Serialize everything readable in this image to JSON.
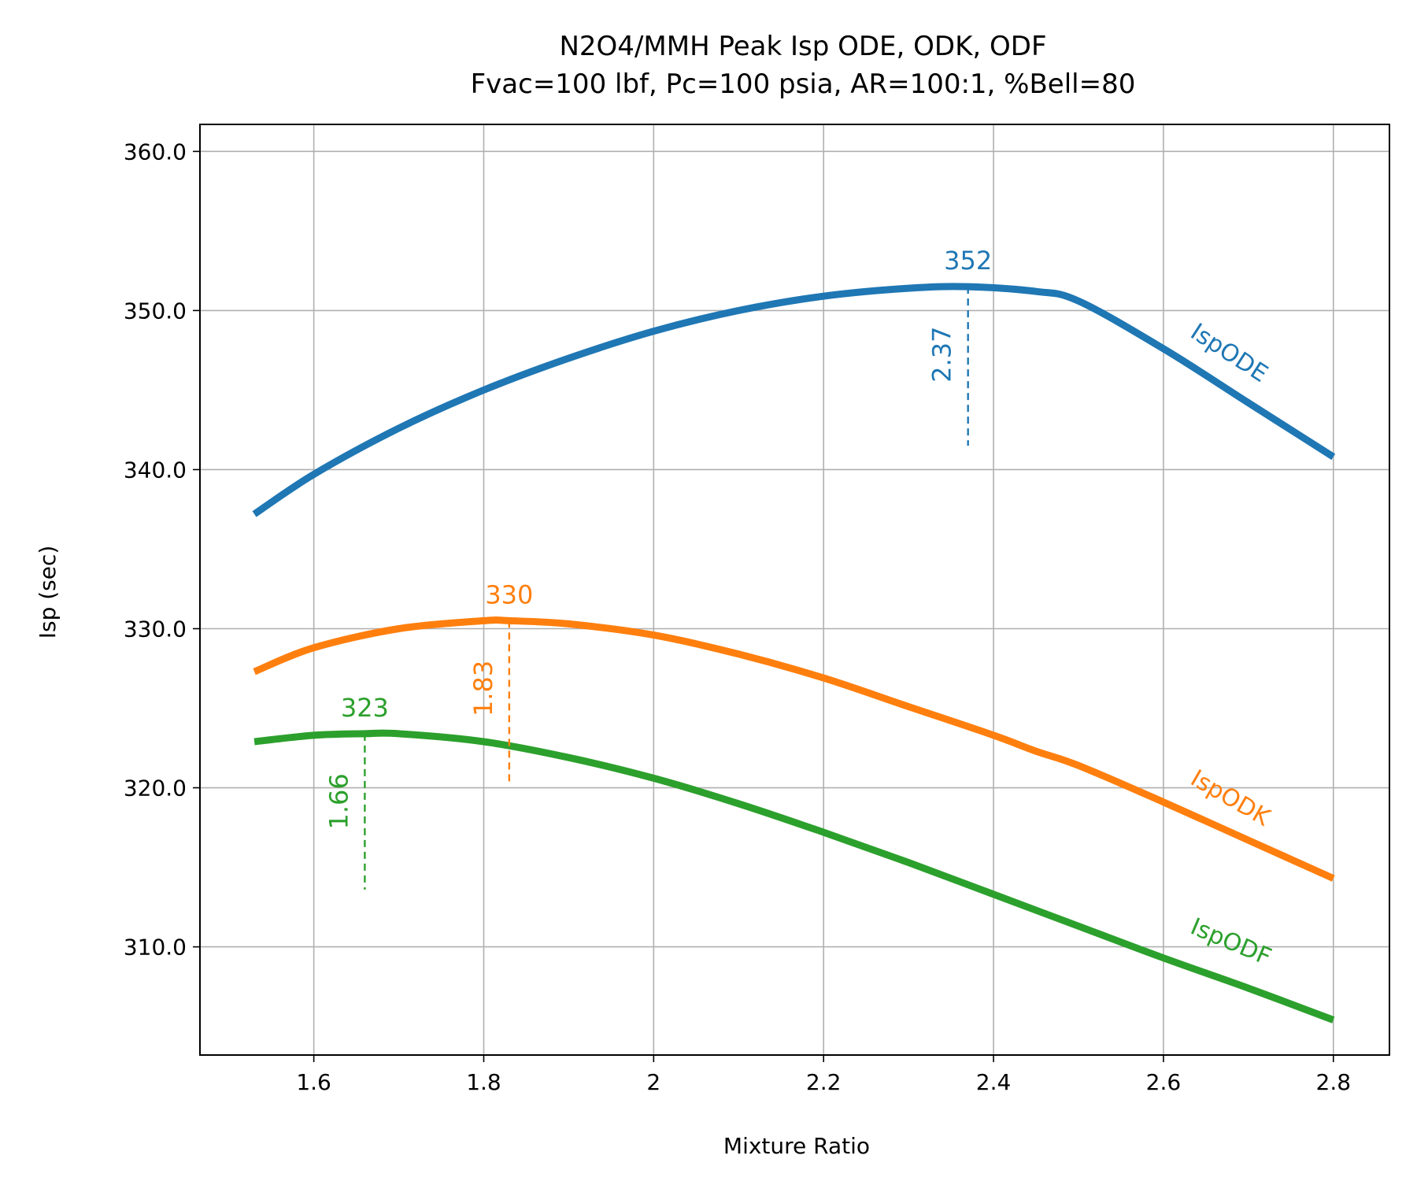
{
  "chart_data": {
    "type": "line",
    "title": "N2O4/MMH Peak Isp ODE, ODK, ODF",
    "subtitle": "Fvac=100 lbf, Pc=100 psia, AR=100:1, %Bell=80",
    "xlabel": "Mixture Ratio",
    "ylabel": "Isp (sec)",
    "xlim": [
      1.466,
      2.866
    ],
    "ylim": [
      303.2,
      361.7
    ],
    "xticks": [
      1.6,
      1.8,
      2.0,
      2.2,
      2.4,
      2.6,
      2.8
    ],
    "xtick_labels": [
      "1.6",
      "1.8",
      "2",
      "2.2",
      "2.4",
      "2.6",
      "2.8"
    ],
    "yticks": [
      310.0,
      320.0,
      330.0,
      340.0,
      350.0,
      360.0
    ],
    "ytick_labels": [
      "310.0",
      "320.0",
      "330.0",
      "340.0",
      "350.0",
      "360.0"
    ],
    "grid": true,
    "legend": "none",
    "series": [
      {
        "name": "IspODE",
        "color": "#1f77b4",
        "x": [
          1.53,
          1.6,
          1.7,
          1.8,
          1.9,
          2.0,
          2.1,
          2.2,
          2.3,
          2.37,
          2.45,
          2.5,
          2.6,
          2.7,
          2.8
        ],
        "y": [
          337.2,
          339.7,
          342.6,
          345.0,
          347.0,
          348.7,
          350.0,
          350.9,
          351.4,
          351.5,
          351.2,
          350.6,
          347.6,
          344.2,
          340.8
        ],
        "peak": {
          "x": 2.37,
          "y": 351.5,
          "x_label": "2.37",
          "y_label": "352",
          "line_bottom": 341.5
        },
        "label_at": {
          "x": 2.63,
          "y": 348.4
        },
        "label_angle": 33
      },
      {
        "name": "IspODK",
        "color": "#ff7f0e",
        "x": [
          1.53,
          1.6,
          1.7,
          1.8,
          1.83,
          1.9,
          2.0,
          2.1,
          2.2,
          2.3,
          2.4,
          2.45,
          2.5,
          2.6,
          2.7,
          2.8
        ],
        "y": [
          327.3,
          328.8,
          330.0,
          330.5,
          330.5,
          330.3,
          329.6,
          328.4,
          326.9,
          325.1,
          323.3,
          322.3,
          321.4,
          319.1,
          316.7,
          314.3
        ],
        "peak": {
          "x": 1.83,
          "y": 330.5,
          "x_label": "1.83",
          "y_label": "330",
          "line_bottom": 320.4
        },
        "label_at": {
          "x": 2.63,
          "y": 320.3
        },
        "label_angle": 30
      },
      {
        "name": "IspODF",
        "color": "#2ca02c",
        "x": [
          1.53,
          1.6,
          1.66,
          1.7,
          1.8,
          1.9,
          2.0,
          2.1,
          2.2,
          2.3,
          2.4,
          2.5,
          2.6,
          2.7,
          2.8
        ],
        "y": [
          322.9,
          323.3,
          323.4,
          323.4,
          322.9,
          321.9,
          320.6,
          319.0,
          317.2,
          315.3,
          313.3,
          311.3,
          309.3,
          307.4,
          305.4
        ],
        "peak": {
          "x": 1.66,
          "y": 323.4,
          "x_label": "1.66",
          "y_label": "323",
          "line_bottom": 313.6
        },
        "label_at": {
          "x": 2.63,
          "y": 310.9
        },
        "label_angle": 23
      }
    ]
  }
}
